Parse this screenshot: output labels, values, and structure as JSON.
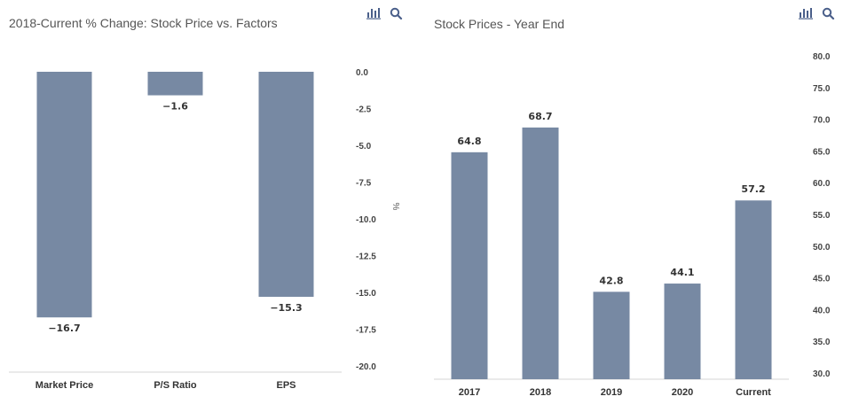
{
  "colors": {
    "bar": "#7789a3",
    "text": "#333333",
    "axis": "#d6d6d6",
    "icon": "#4a5f8a"
  },
  "toolbar": {
    "chart_icon": "bar-chart-icon",
    "search_icon": "search-icon"
  },
  "chart_data": [
    {
      "type": "bar",
      "title": "2018-Current % Change: Stock Price vs. Factors",
      "categories": [
        "Market Price",
        "P/S Ratio",
        "EPS"
      ],
      "values": [
        -16.7,
        -1.6,
        -15.3
      ],
      "value_labels": [
        "−16.7",
        "−1.6",
        "−15.3"
      ],
      "ylabel": "%",
      "ylim": [
        -20.0,
        0.0
      ],
      "ticks": [
        "0.0",
        "-2.5",
        "-5.0",
        "-7.5",
        "-10.0",
        "-12.5",
        "-15.0",
        "-17.5",
        "-20.0"
      ],
      "tick_values": [
        0,
        -2.5,
        -5,
        -7.5,
        -10,
        -12.5,
        -15,
        -17.5,
        -20
      ],
      "grid": false,
      "y_axis_side": "right"
    },
    {
      "type": "bar",
      "title": "Stock Prices - Year End",
      "categories": [
        "2017",
        "2018",
        "2019",
        "2020",
        "Current"
      ],
      "values": [
        64.8,
        68.7,
        42.8,
        44.1,
        57.2
      ],
      "value_labels": [
        "64.8",
        "68.7",
        "42.8",
        "44.1",
        "57.2"
      ],
      "ylabel": "",
      "ylim": [
        30.0,
        80.0
      ],
      "ticks": [
        "80.0",
        "75.0",
        "70.0",
        "65.0",
        "60.0",
        "55.0",
        "50.0",
        "45.0",
        "40.0",
        "35.0",
        "30.0"
      ],
      "tick_values": [
        80,
        75,
        70,
        65,
        60,
        55,
        50,
        45,
        40,
        35,
        30
      ],
      "grid": false,
      "y_axis_side": "right"
    }
  ]
}
